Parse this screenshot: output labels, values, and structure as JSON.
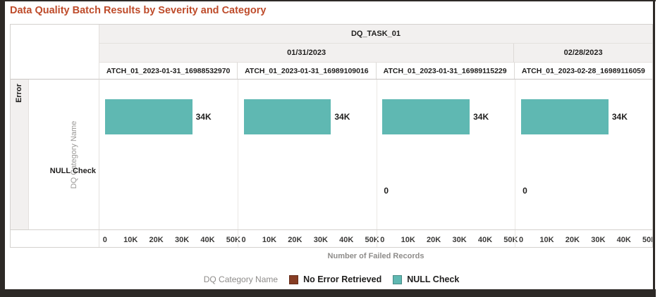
{
  "title": "Data Quality Batch Results by Severity and Category",
  "header": {
    "task": "DQ_TASK_01",
    "dates": [
      {
        "label": "01/31/2023",
        "span": 3
      },
      {
        "label": "02/28/2023",
        "span": 1
      }
    ],
    "batches": [
      "ATCH_01_2023-01-31_16988532970",
      "ATCH_01_2023-01-31_16989109016",
      "ATCH_01_2023-01-31_16989115229",
      "ATCH_01_2023-02-28_16989116059"
    ]
  },
  "rows": {
    "severity": "Error",
    "axis_title": "DQ Category Name"
  },
  "chart_data": {
    "type": "bar",
    "orientation": "horizontal",
    "trellis": true,
    "title": "Data Quality Batch Results by Severity and Category",
    "xlabel": "Number of Failed Records",
    "x_range": [
      0,
      50000
    ],
    "x_ticks": [
      "0",
      "10K",
      "20K",
      "30K",
      "40K",
      "50K"
    ],
    "categories": [
      "NULL Check",
      "No Error Retrieved"
    ],
    "colors": {
      "NULL Check": "#5FB8B2",
      "No Error Retrieved": "#873D24"
    },
    "grid": false,
    "legend_position": "bottom",
    "panels": [
      {
        "task": "DQ_TASK_01",
        "date": "01/31/2023",
        "batch": "ATCH_01_2023-01-31_16988532970",
        "series": [
          {
            "name": "NULL Check",
            "value": 34000,
            "label": "34K"
          },
          {
            "name": "No Error Retrieved",
            "value": null,
            "label": null
          }
        ]
      },
      {
        "task": "DQ_TASK_01",
        "date": "01/31/2023",
        "batch": "ATCH_01_2023-01-31_16989109016",
        "series": [
          {
            "name": "NULL Check",
            "value": 34000,
            "label": "34K"
          },
          {
            "name": "No Error Retrieved",
            "value": null,
            "label": null
          }
        ]
      },
      {
        "task": "DQ_TASK_01",
        "date": "01/31/2023",
        "batch": "ATCH_01_2023-01-31_16989115229",
        "series": [
          {
            "name": "NULL Check",
            "value": 34000,
            "label": "34K"
          },
          {
            "name": "No Error Retrieved",
            "value": 0,
            "label": "0"
          }
        ]
      },
      {
        "task": "DQ_TASK_01",
        "date": "02/28/2023",
        "batch": "ATCH_01_2023-02-28_16989116059",
        "series": [
          {
            "name": "NULL Check",
            "value": 34000,
            "label": "34K"
          },
          {
            "name": "No Error Retrieved",
            "value": 0,
            "label": "0"
          }
        ]
      }
    ]
  },
  "legend": {
    "label": "DQ Category Name",
    "items": [
      {
        "name": "No Error Retrieved",
        "color": "#873D24"
      },
      {
        "name": "NULL Check",
        "color": "#5FB8B2"
      }
    ]
  },
  "colors": {
    "title": "#BE4B2A",
    "teal": "#5FB8B2",
    "brown": "#873D24",
    "header_bg": "#F2F0EF",
    "frame": "#2D2926"
  }
}
